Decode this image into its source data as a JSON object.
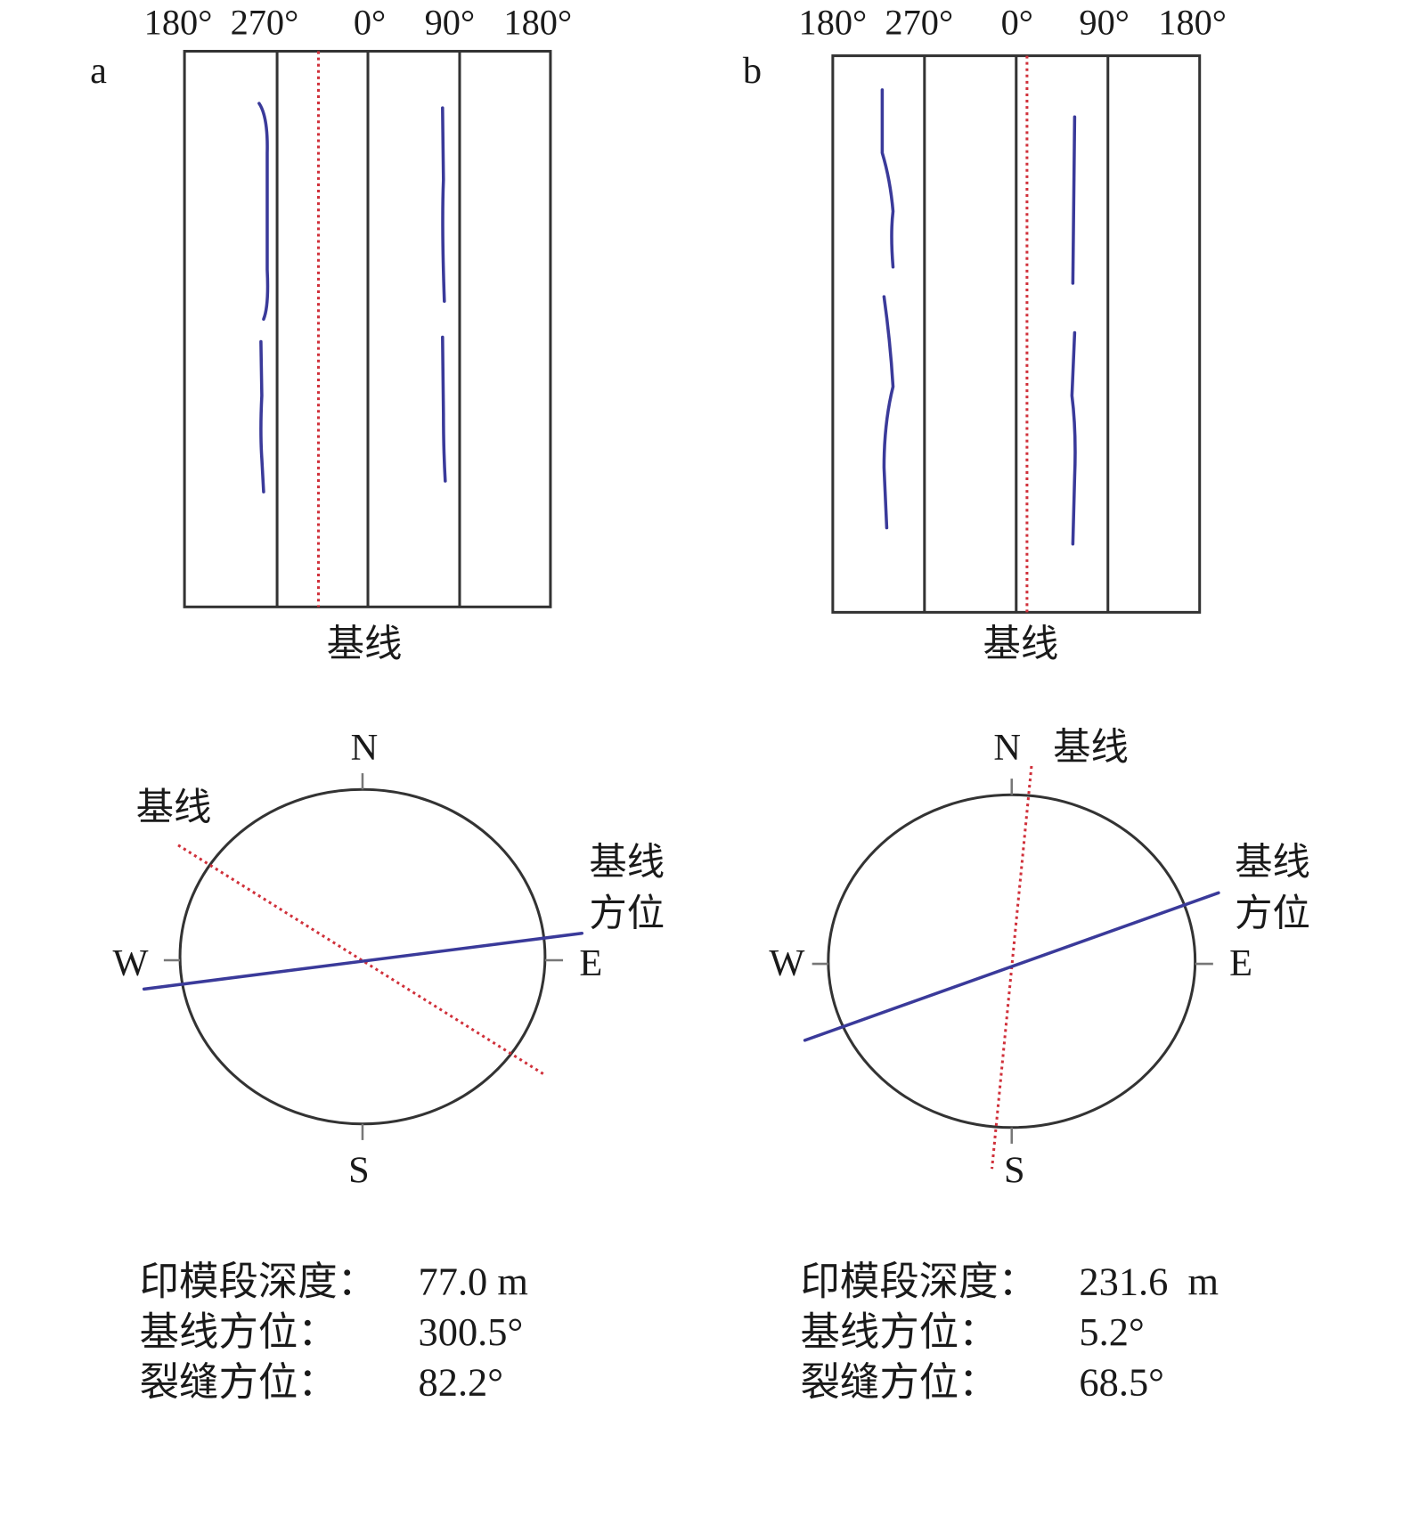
{
  "colors": {
    "fracture": "#3a3a9a",
    "baseline": "#d0303a",
    "frame": "#333333"
  },
  "panels": [
    {
      "label": "a",
      "ticks": [
        "180°",
        "270°",
        "0°",
        "90°",
        "180°"
      ],
      "baseline_label": "基线",
      "compass": {
        "N": "N",
        "S": "S",
        "W": "W",
        "E": "E",
        "baseline_label": "基线",
        "azimuth_label_1": "基线",
        "azimuth_label_2": "方位"
      },
      "info": [
        {
          "key": "印模段深度：",
          "value": "77.0 m"
        },
        {
          "key": "基线方位：",
          "value": "300.5°"
        },
        {
          "key": "裂缝方位：",
          "value": "82.2°"
        }
      ]
    },
    {
      "label": "b",
      "ticks": [
        "180°",
        "270°",
        "0°",
        "90°",
        "180°"
      ],
      "baseline_label": "基线",
      "compass": {
        "N": "N",
        "S": "S",
        "W": "W",
        "E": "E",
        "baseline_label": "基线",
        "azimuth_label_1": "基线",
        "azimuth_label_2": "方位"
      },
      "info": [
        {
          "key": "印模段深度：",
          "value": "231.6  m"
        },
        {
          "key": "基线方位：",
          "value": "5.2°"
        },
        {
          "key": "裂缝方位：",
          "value": "68.5°"
        }
      ]
    }
  ]
}
